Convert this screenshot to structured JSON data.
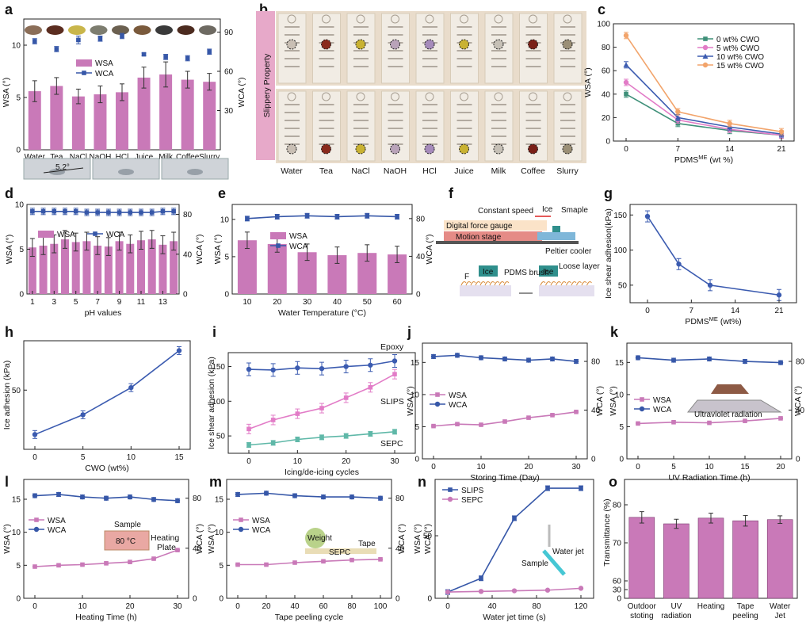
{
  "colors": {
    "wsa": "#c979b8",
    "wca": "#3657a8",
    "green": "#3f9079",
    "orange": "#f2a46b",
    "blue": "#3b5bb0",
    "pink": "#e27cc7",
    "teal": "#5fb8a8"
  },
  "chart_data": [
    {
      "panel": "a",
      "type": "bar",
      "label": "a",
      "categories": [
        "Water",
        "Tea",
        "NaCl",
        "NaOH",
        "HCl",
        "Juice",
        "Milk",
        "Coffee",
        "Slurry"
      ],
      "series": [
        {
          "name": "WSA",
          "values": [
            5.6,
            6.1,
            5.1,
            5.3,
            5.5,
            6.9,
            7.2,
            6.7,
            6.5
          ],
          "err": [
            1.0,
            0.8,
            0.7,
            0.8,
            0.8,
            1.0,
            1.2,
            0.8,
            0.8
          ]
        },
        {
          "name": "WCA",
          "values": [
            83,
            77,
            84,
            85,
            87,
            73,
            71,
            70,
            75
          ],
          "err": [
            2,
            2,
            3,
            2,
            2,
            1,
            2,
            2,
            2
          ]
        }
      ],
      "ylabel": "WSA (°)",
      "y2label": "WCA (°)",
      "yticks": [
        0,
        5,
        10
      ],
      "y2ticks": [
        0,
        30,
        60,
        90
      ],
      "ylim": [
        0,
        12.5
      ],
      "y2lim": [
        0,
        100
      ],
      "annotation": "5.2°"
    },
    {
      "panel": "b",
      "type": "photo",
      "label": "b",
      "title": "Slippery Property",
      "categories": [
        "Water",
        "Tea",
        "NaCl",
        "NaOH",
        "HCl",
        "Juice",
        "Milk",
        "Coffee",
        "Slurry"
      ]
    },
    {
      "panel": "c",
      "type": "line",
      "label": "c",
      "x": [
        0,
        7,
        14,
        21
      ],
      "series": [
        {
          "name": "0 wt% CWO",
          "values": [
            40,
            15,
            9,
            5
          ]
        },
        {
          "name": "5 wt% CWO",
          "values": [
            50,
            18,
            10,
            5
          ]
        },
        {
          "name": "10 wt% CWO",
          "values": [
            65,
            20,
            12,
            6
          ]
        },
        {
          "name": "15 wt% CWO",
          "values": [
            90,
            25,
            15,
            8
          ]
        }
      ],
      "xlabel": "PDMS",
      "xlabel_sup": "ME",
      "xlabel_unit": " (wt %)",
      "ylabel": "WSA (°)",
      "xticks": [
        0,
        7,
        14,
        21
      ],
      "yticks": [
        0,
        20,
        40,
        60,
        80,
        100
      ],
      "ylim": [
        0,
        100
      ]
    },
    {
      "panel": "d",
      "type": "bar",
      "label": "d",
      "x": [
        1,
        2,
        3,
        4,
        5,
        6,
        7,
        8,
        9,
        10,
        11,
        12,
        13,
        14
      ],
      "series": [
        {
          "name": "WSA",
          "values": [
            5.2,
            5.4,
            5.6,
            6.1,
            5.8,
            5.9,
            5.4,
            5.3,
            5.9,
            5.6,
            6.0,
            6.1,
            5.5,
            5.9
          ]
        },
        {
          "name": "WCA",
          "values": [
            83,
            83,
            83,
            83,
            83,
            82,
            82,
            82,
            82,
            82,
            82,
            82,
            83,
            83
          ]
        }
      ],
      "xlabel": "pH values",
      "ylabel": "WSA (°)",
      "y2label": "WCA (°)",
      "xticks": [
        1,
        3,
        5,
        7,
        9,
        11,
        13
      ],
      "yticks": [
        0,
        5,
        10
      ],
      "y2ticks": [
        0,
        40,
        80
      ],
      "ylim": [
        0,
        10
      ],
      "y2lim": [
        0,
        90
      ]
    },
    {
      "panel": "e",
      "type": "bar",
      "label": "e",
      "categories": [
        "10",
        "20",
        "30",
        "40",
        "50",
        "60"
      ],
      "series": [
        {
          "name": "WSA",
          "values": [
            7.2,
            6.7,
            5.6,
            5.2,
            5.5,
            5.3
          ]
        },
        {
          "name": "WCA",
          "values": [
            80,
            82,
            83,
            82,
            83,
            82
          ]
        }
      ],
      "xlabel": "Water Temperature (°C)",
      "ylabel": "WSA (°)",
      "y2label": "WCA (°)",
      "yticks": [
        0,
        5,
        10
      ],
      "y2ticks": [
        0,
        40,
        80
      ],
      "ylim": [
        0,
        12
      ],
      "y2lim": [
        0,
        95
      ]
    },
    {
      "panel": "f",
      "type": "diagram",
      "label": "f",
      "texts": {
        "speed": "Constant speed",
        "ice": "Ice",
        "smaple": "Smaple",
        "gauge": "Digital force gauge",
        "stage": "Motion stage",
        "peltier": "Peltier cooler",
        "brush": "PDMS brush",
        "loose": "Loose layer",
        "force": "F",
        "ice2": "Ice",
        "ice3": "Ice"
      }
    },
    {
      "panel": "g",
      "type": "line",
      "label": "g",
      "x": [
        0,
        5,
        10,
        21
      ],
      "series": [
        {
          "name": "",
          "values": [
            148,
            80,
            50,
            36
          ]
        }
      ],
      "xlabel": "PDMS",
      "xlabel_sup": "ME",
      "xlabel_unit": " (wt%)",
      "ylabel": "Ice shear adhesion(kPa)",
      "xticks": [
        0,
        7,
        14,
        21
      ],
      "yticks": [
        50,
        100,
        150
      ],
      "ylim": [
        25,
        165
      ]
    },
    {
      "panel": "h",
      "type": "line",
      "label": "h",
      "x": [
        0,
        5,
        10,
        15
      ],
      "series": [
        {
          "name": "",
          "values": [
            32,
            40,
            51,
            66
          ]
        }
      ],
      "xlabel": "CWO (wt%)",
      "ylabel": "Ice adhesion (kPa)",
      "xticks": [
        0,
        5,
        10,
        15
      ],
      "yticks": [
        50
      ],
      "ylim": [
        26,
        70
      ]
    },
    {
      "panel": "i",
      "type": "line",
      "label": "i",
      "x": [
        0,
        5,
        10,
        15,
        20,
        25,
        30
      ],
      "series": [
        {
          "name": "Epoxy",
          "values": [
            146,
            145,
            148,
            147,
            150,
            152,
            158
          ]
        },
        {
          "name": "SLIPS",
          "values": [
            60,
            73,
            82,
            90,
            105,
            120,
            139
          ]
        },
        {
          "name": "SEPC",
          "values": [
            37,
            40,
            45,
            48,
            50,
            53,
            56
          ]
        }
      ],
      "xlabel": "Icing/de-icing cycles",
      "ylabel": "Ice shear adhesion (kPa)",
      "xticks": [
        0,
        10,
        20,
        30
      ],
      "yticks": [
        50,
        100,
        150
      ],
      "ylim": [
        25,
        170
      ]
    },
    {
      "panel": "j",
      "type": "line",
      "label": "j",
      "x": [
        0,
        5,
        10,
        15,
        20,
        25,
        30
      ],
      "series": [
        {
          "name": "WSA",
          "values": [
            5.1,
            5.4,
            5.3,
            5.8,
            6.4,
            6.8,
            7.3
          ]
        },
        {
          "name": "WCA",
          "values": [
            84,
            85,
            83,
            82,
            81,
            82,
            80
          ]
        }
      ],
      "xlabel": "Storing Time (Day)",
      "ylabel": "WSA (°)",
      "y2label": "WCA (°)",
      "xticks": [
        0,
        10,
        20,
        30
      ],
      "yticks": [
        0,
        5,
        10,
        15
      ],
      "y2ticks": [
        0,
        40,
        80
      ],
      "ylim": [
        0,
        18
      ],
      "y2lim": [
        0,
        95
      ]
    },
    {
      "panel": "k",
      "type": "line",
      "label": "k",
      "x": [
        0,
        5,
        10,
        15,
        20
      ],
      "series": [
        {
          "name": "WSA",
          "values": [
            5.5,
            5.7,
            5.6,
            5.9,
            6.3
          ]
        },
        {
          "name": "WCA",
          "values": [
            83,
            81,
            82,
            80,
            79
          ]
        }
      ],
      "xlabel": "UV Radiation Time (h)",
      "ylabel": "WSA (°)",
      "y2label": "WCA (°)",
      "xticks": [
        0,
        5,
        10,
        15,
        20
      ],
      "yticks": [
        0,
        5,
        10,
        15
      ],
      "y2ticks": [
        0,
        40,
        80
      ],
      "ylim": [
        0,
        18
      ],
      "y2lim": [
        0,
        95
      ],
      "annotation": "Ultraviolet radiation"
    },
    {
      "panel": "l",
      "type": "line",
      "label": "l",
      "x": [
        0,
        5,
        10,
        15,
        20,
        25,
        30
      ],
      "series": [
        {
          "name": "WSA",
          "values": [
            4.8,
            5.0,
            5.1,
            5.3,
            5.5,
            6.0,
            7.3
          ]
        },
        {
          "name": "WCA",
          "values": [
            82,
            83,
            81,
            80,
            81,
            79,
            78
          ]
        }
      ],
      "xlabel": "Heating Time (h)",
      "ylabel": "WSA (°)",
      "y2label": "WCA (°)",
      "xticks": [
        0,
        10,
        20,
        30
      ],
      "yticks": [
        0,
        5,
        10,
        15
      ],
      "y2ticks": [
        0,
        40,
        80
      ],
      "ylim": [
        0,
        18
      ],
      "y2lim": [
        0,
        95
      ],
      "annotations": {
        "sample": "Sample",
        "temp": "80 °C",
        "plate1": "Heating",
        "plate2": "Plate"
      }
    },
    {
      "panel": "m",
      "type": "line",
      "label": "m",
      "x": [
        0,
        20,
        40,
        60,
        80,
        100
      ],
      "series": [
        {
          "name": "WSA",
          "values": [
            5.1,
            5.1,
            5.4,
            5.6,
            5.8,
            5.9
          ]
        },
        {
          "name": "WCA",
          "values": [
            83,
            84,
            82,
            81,
            81,
            80
          ]
        }
      ],
      "xlabel": "Tape peeling cycle",
      "ylabel": "WSA (°)",
      "y2label": "WCA (°)",
      "xticks": [
        0,
        20,
        40,
        60,
        80,
        100
      ],
      "yticks": [
        0,
        5,
        10,
        15
      ],
      "y2ticks": [
        0,
        40,
        80
      ],
      "ylim": [
        0,
        18
      ],
      "y2lim": [
        0,
        95
      ],
      "annotations": {
        "weight": "Weight",
        "tape": "Tape",
        "sepc": "SEPC"
      }
    },
    {
      "panel": "n",
      "type": "line",
      "label": "n",
      "x": [
        0,
        30,
        60,
        90,
        120
      ],
      "series": [
        {
          "name": "SLIPS",
          "values": [
            5,
            16,
            64,
            88,
            88
          ]
        },
        {
          "name": "SEPC",
          "values": [
            5,
            5.5,
            6,
            6.5,
            8
          ]
        }
      ],
      "xlabel": "Water jet time (s)",
      "ylabel": "WSA (°)",
      "y2label": "WCA (°)",
      "xticks": [
        0,
        40,
        80,
        120
      ],
      "yticks": [
        0,
        50
      ],
      "ylim": [
        0,
        95
      ],
      "annotations": {
        "jet": "Water jet",
        "sample": "Sample"
      }
    },
    {
      "panel": "o",
      "type": "bar",
      "label": "o",
      "categories": [
        "Outdoor\nstoting",
        "UV\nradiation",
        "Heating",
        "Tape\npeeling",
        "Water\nJet"
      ],
      "series": [
        {
          "name": "",
          "values": [
            76.7,
            75.0,
            76.5,
            75.8,
            76.1
          ],
          "err": [
            1.5,
            1.2,
            1.3,
            1.4,
            1.0
          ]
        }
      ],
      "ylabel": "Transmittance (%)",
      "yticks": [
        0,
        30,
        60,
        70,
        80
      ],
      "ylim": [
        0,
        90
      ]
    }
  ]
}
